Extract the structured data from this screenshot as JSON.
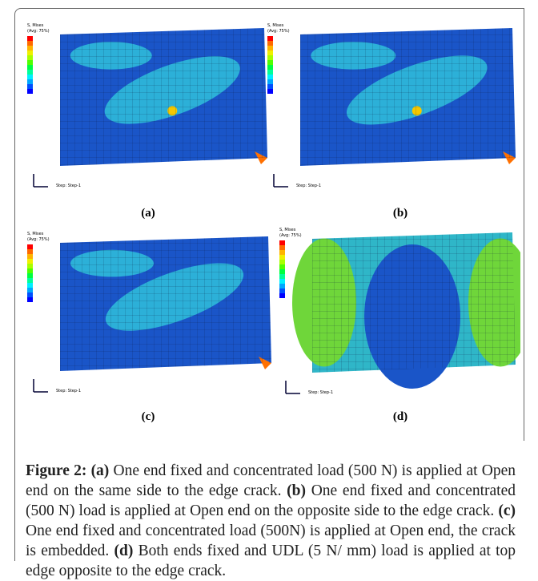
{
  "panels": [
    {
      "label": "(a)",
      "legend_title": "S, Mises",
      "legend_sub": "(Avg: 75%)",
      "step": "Step: Step-1"
    },
    {
      "label": "(b)",
      "legend_title": "S, Mises",
      "legend_sub": "(Avg: 75%)",
      "step": "Step: Step-1"
    },
    {
      "label": "(c)",
      "legend_title": "S, Mises",
      "legend_sub": "(Avg: 75%)",
      "step": "Step: Step-1"
    },
    {
      "label": "(d)",
      "legend_title": "S, Mises",
      "legend_sub": "(Avg: 75%)",
      "step": "Step: Step-1"
    }
  ],
  "caption": {
    "label": "Figure 2:",
    "parts": [
      {
        "tag": "(a)",
        "text": "One end fixed and concentrated load (500 N) is applied at Open end on the same side to the edge crack."
      },
      {
        "tag": "(b)",
        "text": "One end fixed and concentrated (500 N) load is applied at Open end on the opposite side to the edge crack."
      },
      {
        "tag": "(c)",
        "text": "One end fixed and concentrated load (500N) is applied at Open end, the crack is embedded."
      },
      {
        "tag": "(d)",
        "text": "Both ends fixed and UDL (5 N/ mm) load is applied at top edge opposite to the edge crack."
      }
    ]
  }
}
